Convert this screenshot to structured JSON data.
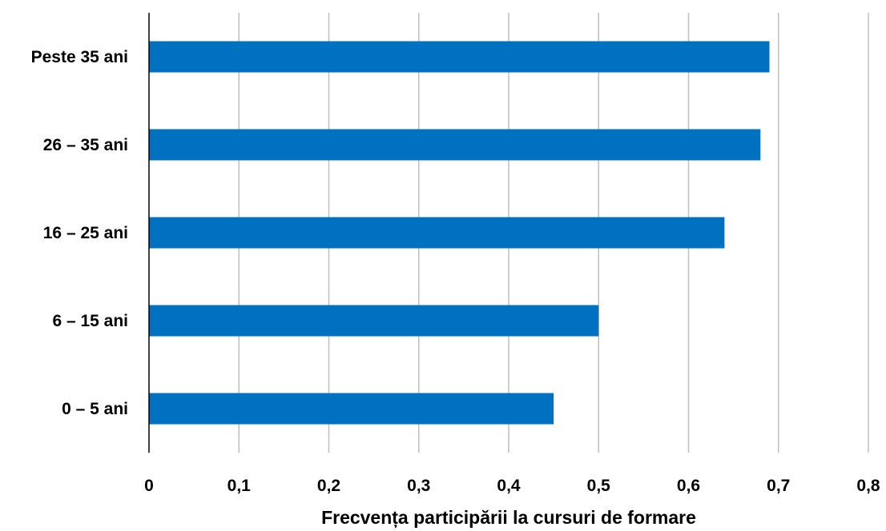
{
  "chart_data": {
    "type": "bar",
    "orientation": "horizontal",
    "categories": [
      "Peste 35 ani",
      "26 – 35 ani",
      "16 – 25 ani",
      "6 – 15 ani",
      "0 – 5 ani"
    ],
    "values": [
      0.69,
      0.68,
      0.64,
      0.5,
      0.45
    ],
    "title": "",
    "xlabel": "Frecvența participării la cursuri de formare",
    "ylabel": "",
    "xlim": [
      0,
      0.8
    ],
    "x_ticks": [
      "0",
      "0,1",
      "0,2",
      "0,3",
      "0,4",
      "0,5",
      "0,6",
      "0,7",
      "0,8"
    ],
    "grid": "vertical",
    "legend": "none",
    "bar_color": "#0070C0",
    "grid_color": "#BFBFBF"
  }
}
